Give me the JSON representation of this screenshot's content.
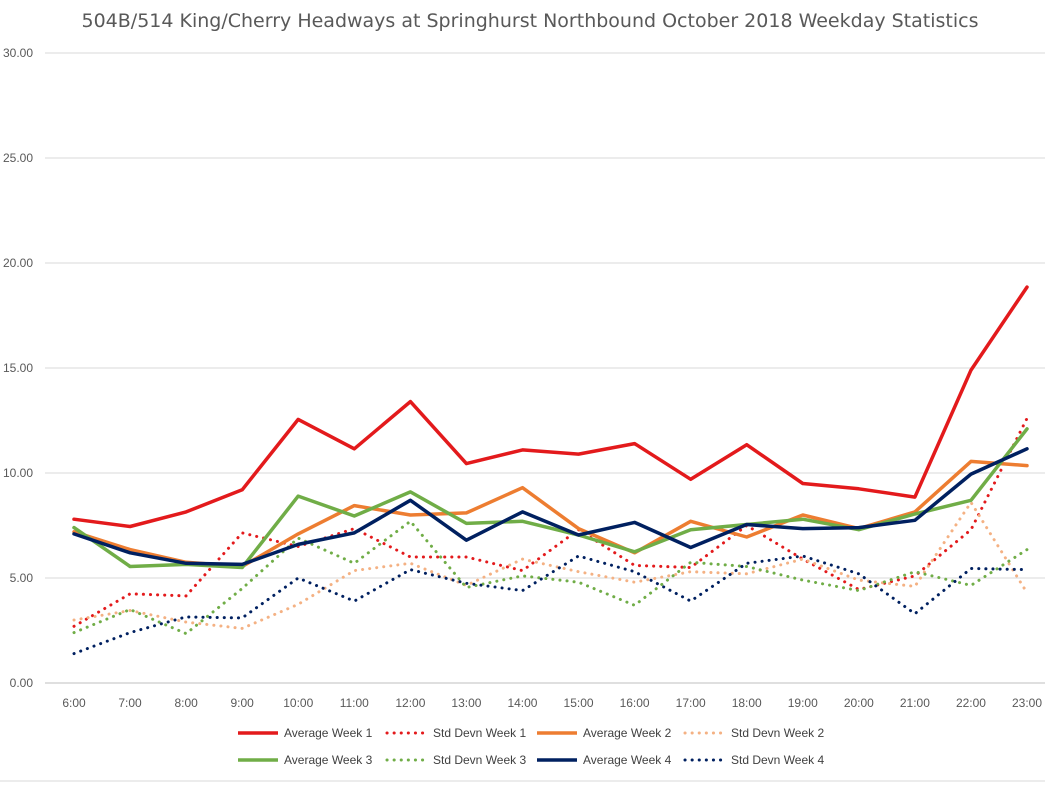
{
  "chart_data": {
    "type": "line",
    "title": "504B/514 King/Cherry Headways at Springhurst Northbound October 2018 Weekday Statistics",
    "xlabel": "",
    "ylabel": "",
    "categories": [
      "6:00",
      "7:00",
      "8:00",
      "9:00",
      "10:00",
      "11:00",
      "12:00",
      "13:00",
      "14:00",
      "15:00",
      "16:00",
      "17:00",
      "18:00",
      "19:00",
      "20:00",
      "21:00",
      "22:00",
      "23:00"
    ],
    "ylim": [
      0,
      30
    ],
    "yticks": [
      "0.00",
      "5.00",
      "10.00",
      "15.00",
      "20.00",
      "25.00",
      "30.00"
    ],
    "grid": true,
    "legend_position": "bottom",
    "series": [
      {
        "name": "Average Week 1",
        "color": "#e31a1c",
        "style": "solid",
        "values": [
          7.8,
          7.45,
          8.15,
          9.2,
          12.55,
          11.15,
          13.4,
          10.45,
          11.1,
          10.9,
          11.4,
          9.7,
          11.35,
          9.5,
          9.25,
          8.85,
          14.9,
          18.85
        ]
      },
      {
        "name": "Std Devn Week 1",
        "color": "#e31a1c",
        "style": "dotted",
        "values": [
          2.7,
          4.25,
          4.15,
          7.15,
          6.5,
          7.35,
          6.0,
          6.0,
          5.35,
          7.3,
          5.6,
          5.5,
          7.5,
          5.9,
          4.45,
          5.1,
          7.3,
          12.6
        ]
      },
      {
        "name": "Average Week 2",
        "color": "#ed7d31",
        "style": "solid",
        "values": [
          7.2,
          6.35,
          5.75,
          5.55,
          7.1,
          8.45,
          8.0,
          8.1,
          9.3,
          7.35,
          6.2,
          7.7,
          6.95,
          8.0,
          7.35,
          8.15,
          10.55,
          10.35
        ]
      },
      {
        "name": "Std Devn Week 2",
        "color": "#f4b183",
        "style": "dotted",
        "values": [
          3.0,
          3.45,
          2.9,
          2.6,
          3.75,
          5.35,
          5.7,
          4.65,
          5.9,
          5.3,
          4.8,
          5.3,
          5.2,
          5.9,
          4.9,
          4.6,
          8.6,
          4.3
        ]
      },
      {
        "name": "Average Week 3",
        "color": "#70ad47",
        "style": "solid",
        "values": [
          7.4,
          5.55,
          5.65,
          5.5,
          8.9,
          7.95,
          9.1,
          7.6,
          7.7,
          7.05,
          6.25,
          7.3,
          7.55,
          7.8,
          7.3,
          8.05,
          8.7,
          12.1
        ]
      },
      {
        "name": "Std Devn Week 3",
        "color": "#70ad47",
        "style": "dotted",
        "values": [
          2.4,
          3.5,
          2.35,
          4.5,
          6.9,
          5.7,
          7.7,
          4.55,
          5.1,
          4.8,
          3.7,
          5.75,
          5.55,
          4.9,
          4.4,
          5.3,
          4.65,
          6.35
        ]
      },
      {
        "name": "Average Week 4",
        "color": "#002060",
        "style": "solid",
        "values": [
          7.1,
          6.2,
          5.7,
          5.65,
          6.6,
          7.15,
          8.7,
          6.8,
          8.15,
          7.05,
          7.65,
          6.45,
          7.55,
          7.35,
          7.4,
          7.75,
          9.95,
          11.15
        ]
      },
      {
        "name": "Std Devn Week 4",
        "color": "#002060",
        "style": "dotted",
        "values": [
          1.4,
          2.4,
          3.15,
          3.1,
          5.0,
          3.9,
          5.4,
          4.75,
          4.4,
          6.05,
          5.3,
          3.9,
          5.7,
          6.05,
          5.2,
          3.3,
          5.45,
          5.4
        ]
      }
    ]
  }
}
